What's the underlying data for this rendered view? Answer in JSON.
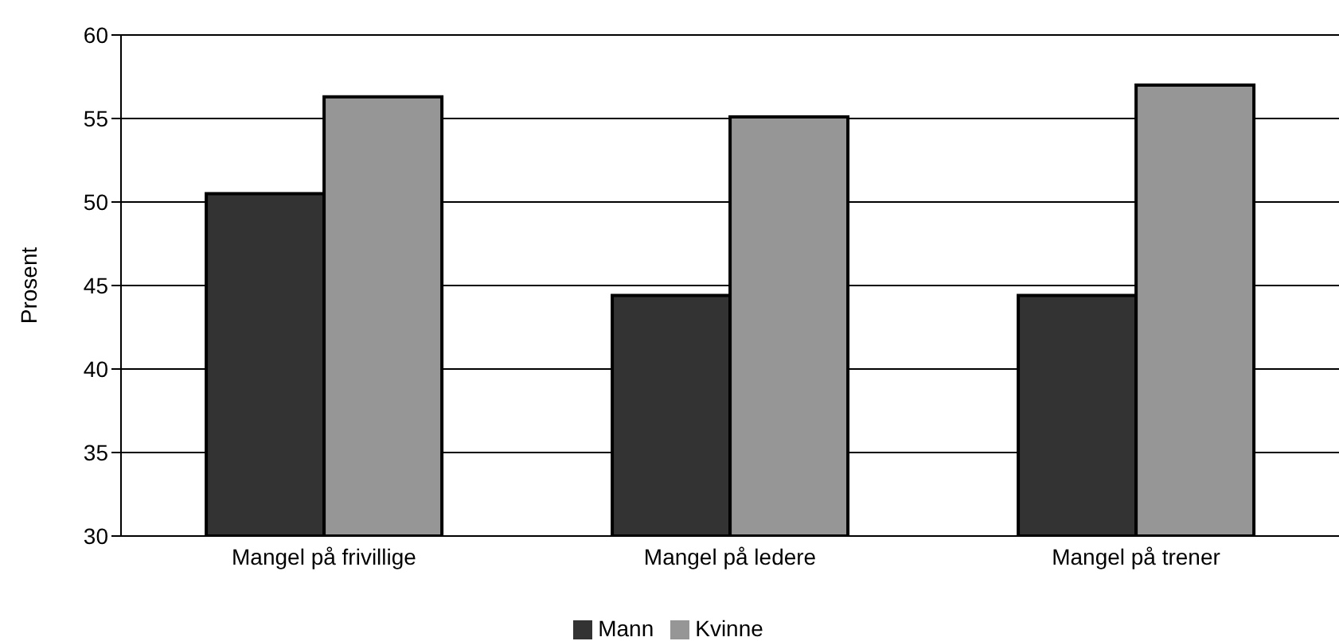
{
  "chart_data": {
    "type": "bar",
    "ylabel": "Prosent",
    "categories": [
      "Mangel på frivillige",
      "Mangel på ledere",
      "Mangel på trener"
    ],
    "series": [
      {
        "name": "Mann",
        "color": "#333333",
        "values": [
          50.5,
          44.4,
          44.4
        ]
      },
      {
        "name": "Kvinne",
        "color": "#969696",
        "values": [
          56.3,
          55.1,
          57.0
        ]
      }
    ],
    "ylim": [
      30,
      60
    ],
    "yticks": [
      30,
      35,
      40,
      45,
      50,
      55,
      60
    ],
    "grid": "y",
    "legend": "bottom"
  }
}
